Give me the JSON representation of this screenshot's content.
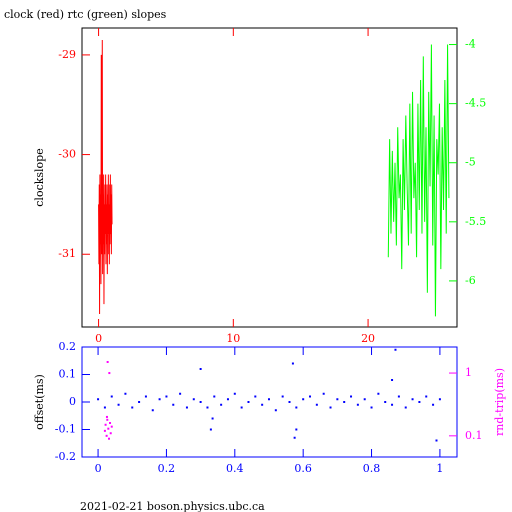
{
  "footer": "2021-02-21 boson.physics.ubc.ca",
  "chart_data": [
    {
      "type": "line",
      "title": "clock (red) rtc (green) slopes",
      "ylabel": "clockslope",
      "xlim": [
        -1.23,
        26.6
      ],
      "xticks": [
        0,
        10,
        20
      ],
      "ylim": [
        -31.73,
        -28.73
      ],
      "yticks": [
        -29,
        -30,
        -31
      ],
      "y2lim": [
        -6.39,
        -3.86
      ],
      "y2ticks": [
        -4,
        -4.5,
        -5,
        -5.5,
        -6
      ],
      "series": [
        {
          "color": "#ff0000",
          "x": [
            0,
            0.025,
            0.05,
            0.075,
            0.1,
            0.125,
            0.15,
            0.175,
            0.2,
            0.225,
            0.25,
            0.275,
            0.3,
            0.325,
            0.35,
            0.375,
            0.4,
            0.425,
            0.45,
            0.475,
            0.5,
            0.525,
            0.55,
            0.575,
            0.6,
            0.625,
            0.65,
            0.675,
            0.7,
            0.725,
            0.75,
            0.775,
            0.8,
            0.825,
            0.85,
            0.875,
            0.9,
            0.925,
            0.95,
            0.975,
            1.0
          ],
          "values": [
            -30.5,
            -31.1,
            -30.3,
            -31.6,
            -30.2,
            -30.9,
            -30.4,
            -31.3,
            -29.0,
            -31.0,
            -30.3,
            -28.85,
            -31.2,
            -30.4,
            -30.9,
            -30.2,
            -31.5,
            -30.5,
            -31.0,
            -30.3,
            -30.8,
            -30.2,
            -31.1,
            -30.5,
            -30.9,
            -30.3,
            -31.2,
            -30.4,
            -30.8,
            -30.2,
            -31.0,
            -30.5,
            -31.1,
            -30.3,
            -30.9,
            -30.2,
            -30.8,
            -30.4,
            -31.0,
            -30.3,
            -30.7
          ]
        },
        {
          "color": "#00ff00",
          "axis": "y2",
          "x": [
            21.5,
            21.6,
            21.7,
            21.8,
            21.9,
            22.0,
            22.1,
            22.2,
            22.3,
            22.4,
            22.5,
            22.6,
            22.7,
            22.8,
            22.9,
            23.0,
            23.1,
            23.2,
            23.3,
            23.4,
            23.5,
            23.6,
            23.7,
            23.8,
            23.9,
            24.0,
            24.1,
            24.2,
            24.3,
            24.4,
            24.5,
            24.6,
            24.7,
            24.8,
            24.9,
            25.0,
            25.1,
            25.2,
            25.3,
            25.4,
            25.5,
            25.6,
            25.7,
            25.8,
            25.9,
            26.0
          ],
          "values": [
            -5.8,
            -4.8,
            -5.6,
            -4.9,
            -5.5,
            -5.0,
            -5.7,
            -4.7,
            -5.3,
            -5.1,
            -5.9,
            -4.8,
            -5.4,
            -4.6,
            -5.2,
            -5.7,
            -4.5,
            -5.6,
            -4.4,
            -5.3,
            -5.0,
            -5.8,
            -4.5,
            -5.4,
            -4.3,
            -5.6,
            -4.1,
            -5.5,
            -4.7,
            -6.1,
            -4.4,
            -5.2,
            -4.0,
            -5.7,
            -4.6,
            -6.3,
            -4.8,
            -5.1,
            -4.5,
            -5.9,
            -4.7,
            -5.4,
            -4.3,
            -5.6,
            -4.0,
            -5.3
          ]
        }
      ]
    },
    {
      "type": "scatter",
      "ylabel": "offset(ms)",
      "y2label": "rnd-trip(ms)",
      "xlim": [
        -0.047,
        1.05
      ],
      "xticks": [
        0,
        0.2,
        0.4,
        0.6,
        0.8,
        1
      ],
      "ylim": [
        -0.2,
        0.2
      ],
      "yticks": [
        0.2,
        0.1,
        0,
        -0.1,
        -0.2
      ],
      "y2lim": [
        0.046,
        2.6
      ],
      "y2ticks": [
        1,
        0.1
      ],
      "y2log": true,
      "series": [
        {
          "color": "#0000ff",
          "x": [
            0,
            0.02,
            0.04,
            0.06,
            0.08,
            0.1,
            0.12,
            0.14,
            0.16,
            0.18,
            0.2,
            0.22,
            0.24,
            0.26,
            0.28,
            0.3,
            0.32,
            0.34,
            0.36,
            0.38,
            0.4,
            0.42,
            0.44,
            0.46,
            0.48,
            0.5,
            0.52,
            0.54,
            0.56,
            0.58,
            0.6,
            0.62,
            0.64,
            0.66,
            0.68,
            0.7,
            0.72,
            0.74,
            0.76,
            0.78,
            0.8,
            0.82,
            0.84,
            0.86,
            0.88,
            0.9,
            0.92,
            0.94,
            0.96,
            0.98,
            1.0,
            0.33,
            0.335,
            0.57,
            0.575,
            0.58,
            0.86,
            0.87,
            0.3,
            0.99
          ],
          "values": [
            0.01,
            -0.02,
            0.02,
            -0.01,
            0.03,
            -0.02,
            0.0,
            0.02,
            -0.03,
            0.01,
            0.02,
            -0.01,
            0.03,
            -0.02,
            0.01,
            0.0,
            -0.02,
            0.02,
            -0.01,
            0.01,
            0.03,
            -0.02,
            0.0,
            0.02,
            -0.01,
            0.01,
            -0.03,
            0.02,
            0.0,
            -0.02,
            0.01,
            0.02,
            -0.01,
            0.03,
            -0.02,
            0.01,
            0.0,
            0.02,
            -0.01,
            0.01,
            -0.02,
            0.03,
            0.0,
            -0.01,
            0.02,
            -0.02,
            0.01,
            0.0,
            0.02,
            -0.01,
            0.01,
            -0.1,
            -0.06,
            0.14,
            -0.13,
            -0.1,
            0.08,
            0.19,
            0.12,
            -0.14
          ]
        },
        {
          "color": "#ff00ff",
          "axis": "y2",
          "x": [
            0.02,
            0.022,
            0.025,
            0.027,
            0.03,
            0.032,
            0.035,
            0.037,
            0.04,
            0.028,
            0.033,
            0.026
          ],
          "values": [
            0.12,
            0.15,
            0.1,
            0.18,
            0.13,
            0.09,
            0.16,
            0.11,
            0.14,
            1.5,
            1.0,
            0.2
          ]
        }
      ]
    }
  ]
}
